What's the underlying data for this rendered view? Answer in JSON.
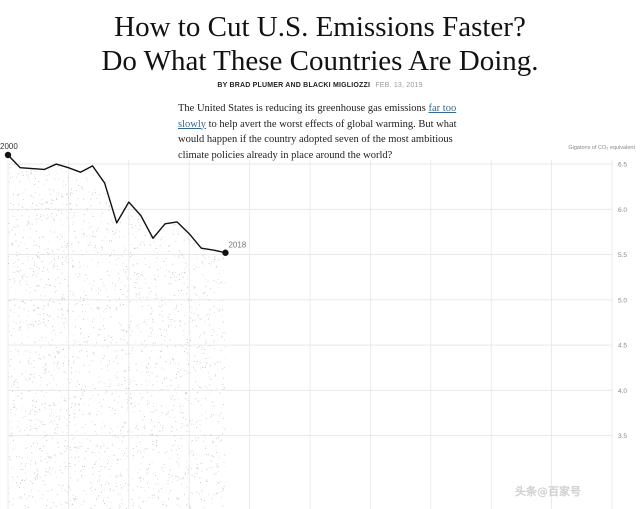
{
  "article": {
    "headline_line1": "How to Cut U.S. Emissions Faster?",
    "headline_line2": "Do What These Countries Are Doing.",
    "byline_names": "BY BRAD PLUMER AND BLACKI MIGLIOZZI",
    "byline_date": "FEB. 13, 2019",
    "intro_before": "The United States is reducing its greenhouse gas emissions ",
    "intro_link": "far too slowly",
    "intro_after": " to help avert the worst effects of global warming. But what would happen if the country adopted seven of the most ambitious climate policies already in place around the world?",
    "link_color": "#326891"
  },
  "watermark": "头条@百家号",
  "chart_data": {
    "type": "line",
    "title": "",
    "xlabel": "",
    "ylabel": "Gigatons of CO₂ equivalent",
    "ylim": [
      3.2,
      6.6
    ],
    "xlim": [
      2000,
      2050
    ],
    "yticks": [
      "6.5",
      "6.0",
      "5.5",
      "5.0",
      "4.5",
      "4.0",
      "3.5"
    ],
    "ytick_values": [
      6.5,
      6.0,
      5.5,
      5.0,
      4.5,
      4.0,
      3.5
    ],
    "grid": true,
    "series": [
      {
        "x": [
          2000,
          2001,
          2002,
          2003,
          2004,
          2005,
          2006,
          2007,
          2008,
          2009,
          2010,
          2011,
          2012,
          2013,
          2014,
          2015,
          2016,
          2017,
          2018
        ],
        "values": [
          6.6,
          6.46,
          6.45,
          6.44,
          6.5,
          6.46,
          6.41,
          6.48,
          6.29,
          5.85,
          6.08,
          5.93,
          5.68,
          5.84,
          5.86,
          5.73,
          5.57,
          5.55,
          5.52
        ],
        "color": "#121212"
      }
    ],
    "annotations": [
      {
        "x": 2000,
        "label": "2000"
      },
      {
        "x": 2018,
        "label": "2018"
      }
    ]
  }
}
